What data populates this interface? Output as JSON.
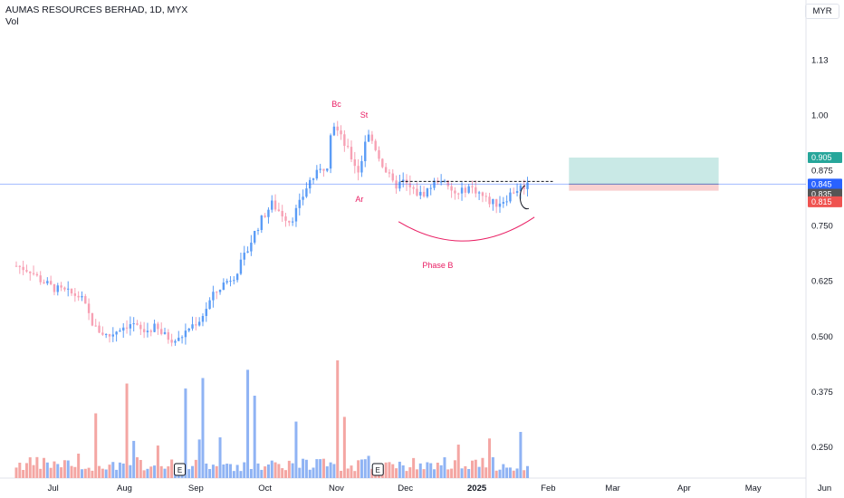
{
  "header": {
    "title": "AUMAS RESOURCES BERHAD, 1D, MYX",
    "volume_label": "Vol",
    "currency": "MYR"
  },
  "colors": {
    "up": "#26a69a",
    "down": "#ef5350",
    "candle_up": "#5b9cf6",
    "candle_down": "#f7a1b4",
    "vol_up": "#8fb3f4",
    "vol_down": "#f4a6a3",
    "annotation": "#e91e63",
    "price_line": "#2962ff",
    "target_zone": "#b2dfdb",
    "stop_zone": "#f8c6c6"
  },
  "chart_data": {
    "type": "candlestick",
    "title": "AUMAS RESOURCES BERHAD, 1D, MYX",
    "y_axis_ticks": [
      "1.13",
      "1.00",
      "0.875",
      "0.750",
      "0.625",
      "0.500",
      "0.375",
      "0.250"
    ],
    "y_axis_values": [
      1.125,
      1.0,
      0.875,
      0.75,
      0.625,
      0.5,
      0.375,
      0.25
    ],
    "ylim": [
      0.18,
      1.2
    ],
    "x_axis_ticks": [
      "Jul",
      "Aug",
      "Sep",
      "Oct",
      "Nov",
      "Dec",
      "2025",
      "Feb",
      "Mar",
      "Apr",
      "May",
      "Jun"
    ],
    "xlim_days": [
      0,
      350
    ],
    "x_tick_days": [
      16,
      47,
      78,
      108,
      139,
      169,
      200,
      231,
      259,
      290,
      320,
      351
    ],
    "price_path": [
      [
        0,
        0.66
      ],
      [
        6,
        0.65
      ],
      [
        10,
        0.63
      ],
      [
        16,
        0.61
      ],
      [
        22,
        0.6
      ],
      [
        28,
        0.59
      ],
      [
        34,
        0.52
      ],
      [
        40,
        0.5
      ],
      [
        45,
        0.52
      ],
      [
        50,
        0.53
      ],
      [
        55,
        0.51
      ],
      [
        60,
        0.52
      ],
      [
        65,
        0.5
      ],
      [
        70,
        0.49
      ],
      [
        75,
        0.52
      ],
      [
        80,
        0.54
      ],
      [
        85,
        0.59
      ],
      [
        90,
        0.62
      ],
      [
        95,
        0.64
      ],
      [
        100,
        0.69
      ],
      [
        103,
        0.73
      ],
      [
        107,
        0.77
      ],
      [
        111,
        0.8
      ],
      [
        115,
        0.78
      ],
      [
        119,
        0.76
      ],
      [
        123,
        0.8
      ],
      [
        127,
        0.85
      ],
      [
        131,
        0.87
      ],
      [
        135,
        0.89
      ],
      [
        137,
        0.99
      ],
      [
        140,
        0.96
      ],
      [
        143,
        0.93
      ],
      [
        146,
        0.9
      ],
      [
        149,
        0.87
      ],
      [
        152,
        0.96
      ],
      [
        155,
        0.94
      ],
      [
        158,
        0.9
      ],
      [
        161,
        0.87
      ],
      [
        164,
        0.84
      ],
      [
        168,
        0.85
      ],
      [
        172,
        0.83
      ],
      [
        176,
        0.82
      ],
      [
        180,
        0.84
      ],
      [
        184,
        0.86
      ],
      [
        188,
        0.83
      ],
      [
        192,
        0.82
      ],
      [
        196,
        0.84
      ],
      [
        200,
        0.83
      ],
      [
        204,
        0.81
      ],
      [
        208,
        0.8
      ],
      [
        212,
        0.81
      ],
      [
        216,
        0.83
      ],
      [
        220,
        0.84
      ],
      [
        222,
        0.845
      ]
    ],
    "volume_spikes": [
      [
        34,
        0.55
      ],
      [
        48,
        0.6
      ],
      [
        73,
        0.52
      ],
      [
        81,
        0.85
      ],
      [
        100,
        0.92
      ],
      [
        104,
        0.7
      ],
      [
        139,
        1.0
      ],
      [
        142,
        0.52
      ],
      [
        121,
        0.48
      ]
    ],
    "annotations": [
      {
        "text": "Bc",
        "day": 139,
        "price": 1.02
      },
      {
        "text": "St",
        "day": 151,
        "price": 0.995
      },
      {
        "text": "Ar",
        "day": 149,
        "price": 0.805
      },
      {
        "text": "Phase B",
        "day": 183,
        "price": 0.655
      }
    ],
    "resistance_line": {
      "price": 0.851,
      "from_day": 167,
      "to_day": 233
    },
    "current_price": 0.845,
    "price_tags": [
      {
        "label": "0.905",
        "value": 0.905,
        "color": "#26a69a"
      },
      {
        "label": "0.845",
        "value": 0.845,
        "color": "#2962ff",
        "sub": "06:15:25"
      },
      {
        "label": "0.835",
        "value": 0.822,
        "color": "#555555"
      },
      {
        "label": "0.815",
        "value": 0.805,
        "color": "#ef5350"
      }
    ],
    "position": {
      "entry": 0.845,
      "target": 0.905,
      "stop": 0.83,
      "from_day": 240,
      "to_day": 305
    },
    "earnings_markers": [
      {
        "day": 71,
        "label": "E"
      },
      {
        "day": 157,
        "label": "E"
      }
    ]
  }
}
